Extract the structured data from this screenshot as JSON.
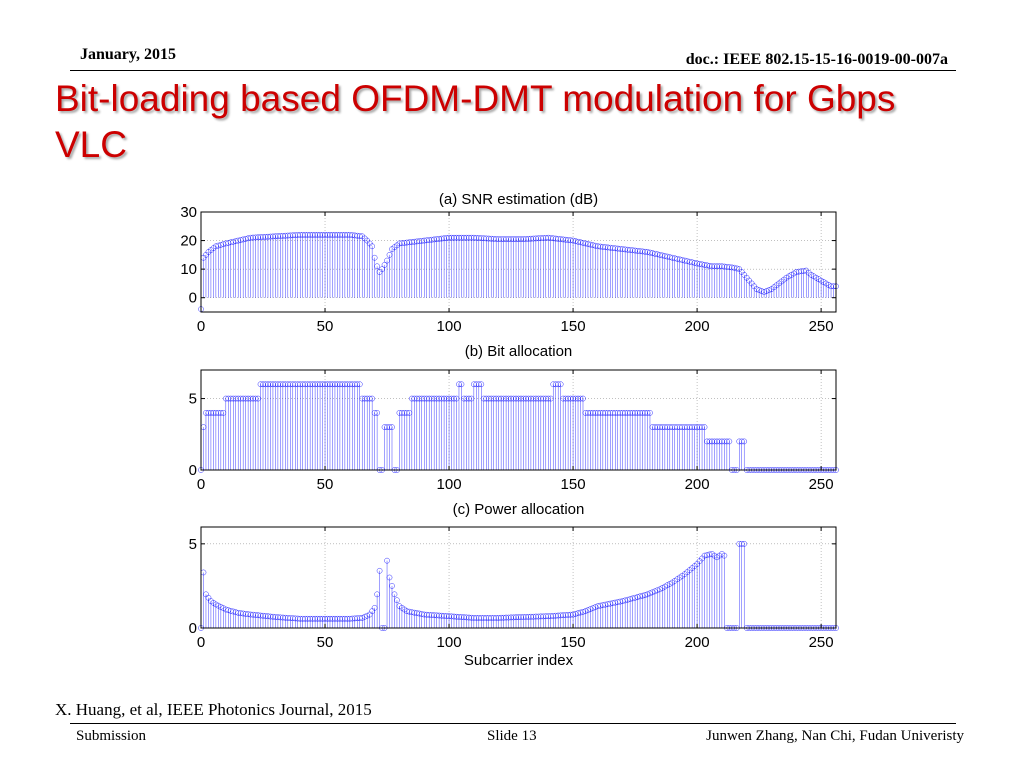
{
  "slide": {
    "date": "January, 2015",
    "doc": "doc.: IEEE 802.15-15-16-0019-00-007a",
    "title": "Bit-loading based OFDM-DMT modulation for Gbps VLC",
    "citation": "X. Huang, et al, IEEE Photonics Journal, 2015",
    "footer_left": "Submission",
    "footer_center": "Slide 13",
    "footer_right": "Junwen Zhang, Nan Chi, Fudan Univeristy"
  },
  "colors": {
    "title": "#cc0000",
    "stem": "#0000ff",
    "grid": "#9a9a9a"
  },
  "chart_data": [
    {
      "type": "stem",
      "title": "(a) SNR estimation (dB)",
      "xlabel": "",
      "ylabel": "",
      "xlim": [
        0,
        256
      ],
      "ylim": [
        -5,
        30
      ],
      "xticks": [
        0,
        50,
        100,
        150,
        200,
        250
      ],
      "yticks": [
        0,
        10,
        20,
        30
      ],
      "grid": true,
      "x": [
        1,
        256
      ],
      "x_step": 1,
      "profile_points": [
        [
          0,
          -4
        ],
        [
          1,
          14
        ],
        [
          3,
          16
        ],
        [
          6,
          18
        ],
        [
          10,
          19
        ],
        [
          15,
          20
        ],
        [
          20,
          21
        ],
        [
          30,
          21.5
        ],
        [
          40,
          22
        ],
        [
          50,
          22
        ],
        [
          60,
          22
        ],
        [
          65,
          21.5
        ],
        [
          67,
          20
        ],
        [
          69,
          18
        ],
        [
          70,
          14
        ],
        [
          71,
          11
        ],
        [
          72,
          9
        ],
        [
          73,
          10
        ],
        [
          75,
          13
        ],
        [
          77,
          17
        ],
        [
          80,
          19
        ],
        [
          90,
          20
        ],
        [
          100,
          21
        ],
        [
          110,
          21
        ],
        [
          120,
          20.5
        ],
        [
          130,
          20.5
        ],
        [
          140,
          21
        ],
        [
          150,
          20
        ],
        [
          160,
          18
        ],
        [
          170,
          17
        ],
        [
          180,
          16
        ],
        [
          190,
          14
        ],
        [
          200,
          12
        ],
        [
          206,
          11
        ],
        [
          210,
          11
        ],
        [
          215,
          10.5
        ],
        [
          217,
          10
        ],
        [
          219,
          8
        ],
        [
          221,
          6
        ],
        [
          224,
          3
        ],
        [
          227,
          2
        ],
        [
          230,
          3
        ],
        [
          233,
          5
        ],
        [
          236,
          7
        ],
        [
          240,
          9
        ],
        [
          244,
          9.5
        ],
        [
          246,
          8
        ],
        [
          248,
          7
        ],
        [
          250,
          6
        ],
        [
          252,
          5
        ],
        [
          254,
          4
        ],
        [
          256,
          4
        ]
      ]
    },
    {
      "type": "stem",
      "title": "(b) Bit allocation",
      "xlabel": "",
      "ylabel": "",
      "xlim": [
        0,
        256
      ],
      "ylim": [
        0,
        7
      ],
      "xticks": [
        0,
        50,
        100,
        150,
        200,
        250
      ],
      "yticks": [
        0,
        5
      ],
      "grid": true,
      "x": [
        1,
        256
      ],
      "x_step": 1,
      "runs": [
        [
          0,
          0,
          0
        ],
        [
          1,
          1,
          3
        ],
        [
          2,
          7,
          4
        ],
        [
          8,
          9,
          4
        ],
        [
          10,
          23,
          5
        ],
        [
          24,
          64,
          6
        ],
        [
          65,
          69,
          5
        ],
        [
          70,
          71,
          4
        ],
        [
          72,
          73,
          0
        ],
        [
          74,
          75,
          3
        ],
        [
          76,
          77,
          3
        ],
        [
          78,
          79,
          0
        ],
        [
          80,
          84,
          4
        ],
        [
          85,
          103,
          5
        ],
        [
          104,
          105,
          6
        ],
        [
          106,
          109,
          5
        ],
        [
          110,
          113,
          6
        ],
        [
          114,
          141,
          5
        ],
        [
          142,
          145,
          6
        ],
        [
          146,
          154,
          5
        ],
        [
          155,
          154,
          5
        ],
        [
          155,
          181,
          4
        ],
        [
          182,
          194,
          3
        ],
        [
          195,
          203,
          3
        ],
        [
          204,
          209,
          2
        ],
        [
          210,
          213,
          2
        ],
        [
          214,
          216,
          0
        ],
        [
          217,
          219,
          2
        ],
        [
          220,
          256,
          0
        ]
      ]
    },
    {
      "type": "stem",
      "title": "(c) Power allocation",
      "xlabel": "Subcarrier index",
      "ylabel": "",
      "xlim": [
        0,
        256
      ],
      "ylim": [
        0,
        6
      ],
      "xticks": [
        0,
        50,
        100,
        150,
        200,
        250
      ],
      "yticks": [
        0,
        5
      ],
      "grid": true,
      "x": [
        1,
        256
      ],
      "x_step": 1,
      "profile_points": [
        [
          0,
          0
        ],
        [
          1,
          3.3
        ],
        [
          2,
          2
        ],
        [
          4,
          1.6
        ],
        [
          6,
          1.4
        ],
        [
          10,
          1.1
        ],
        [
          15,
          0.9
        ],
        [
          20,
          0.8
        ],
        [
          30,
          0.65
        ],
        [
          40,
          0.55
        ],
        [
          50,
          0.55
        ],
        [
          60,
          0.55
        ],
        [
          65,
          0.6
        ],
        [
          68,
          0.8
        ],
        [
          70,
          1.2
        ],
        [
          71,
          2
        ],
        [
          72,
          3.4
        ],
        [
          73,
          0
        ],
        [
          74,
          0
        ],
        [
          75,
          4
        ],
        [
          76,
          3
        ],
        [
          78,
          2
        ],
        [
          80,
          1.3
        ],
        [
          83,
          1
        ],
        [
          90,
          0.8
        ],
        [
          100,
          0.7
        ],
        [
          110,
          0.6
        ],
        [
          120,
          0.6
        ],
        [
          130,
          0.65
        ],
        [
          140,
          0.7
        ],
        [
          150,
          0.8
        ],
        [
          155,
          1
        ],
        [
          160,
          1.3
        ],
        [
          170,
          1.6
        ],
        [
          180,
          2
        ],
        [
          185,
          2.3
        ],
        [
          190,
          2.7
        ],
        [
          195,
          3.2
        ],
        [
          200,
          3.8
        ],
        [
          203,
          4.3
        ],
        [
          206,
          4.4
        ],
        [
          208,
          4.2
        ],
        [
          210,
          4.4
        ],
        [
          211,
          4.3
        ],
        [
          212,
          0
        ],
        [
          216,
          0
        ],
        [
          217,
          5
        ],
        [
          219,
          5
        ],
        [
          220,
          0
        ],
        [
          256,
          0
        ]
      ],
      "zero_runs": [
        [
          0,
          0
        ],
        [
          73,
          74
        ],
        [
          212,
          216
        ],
        [
          220,
          256
        ]
      ]
    }
  ]
}
